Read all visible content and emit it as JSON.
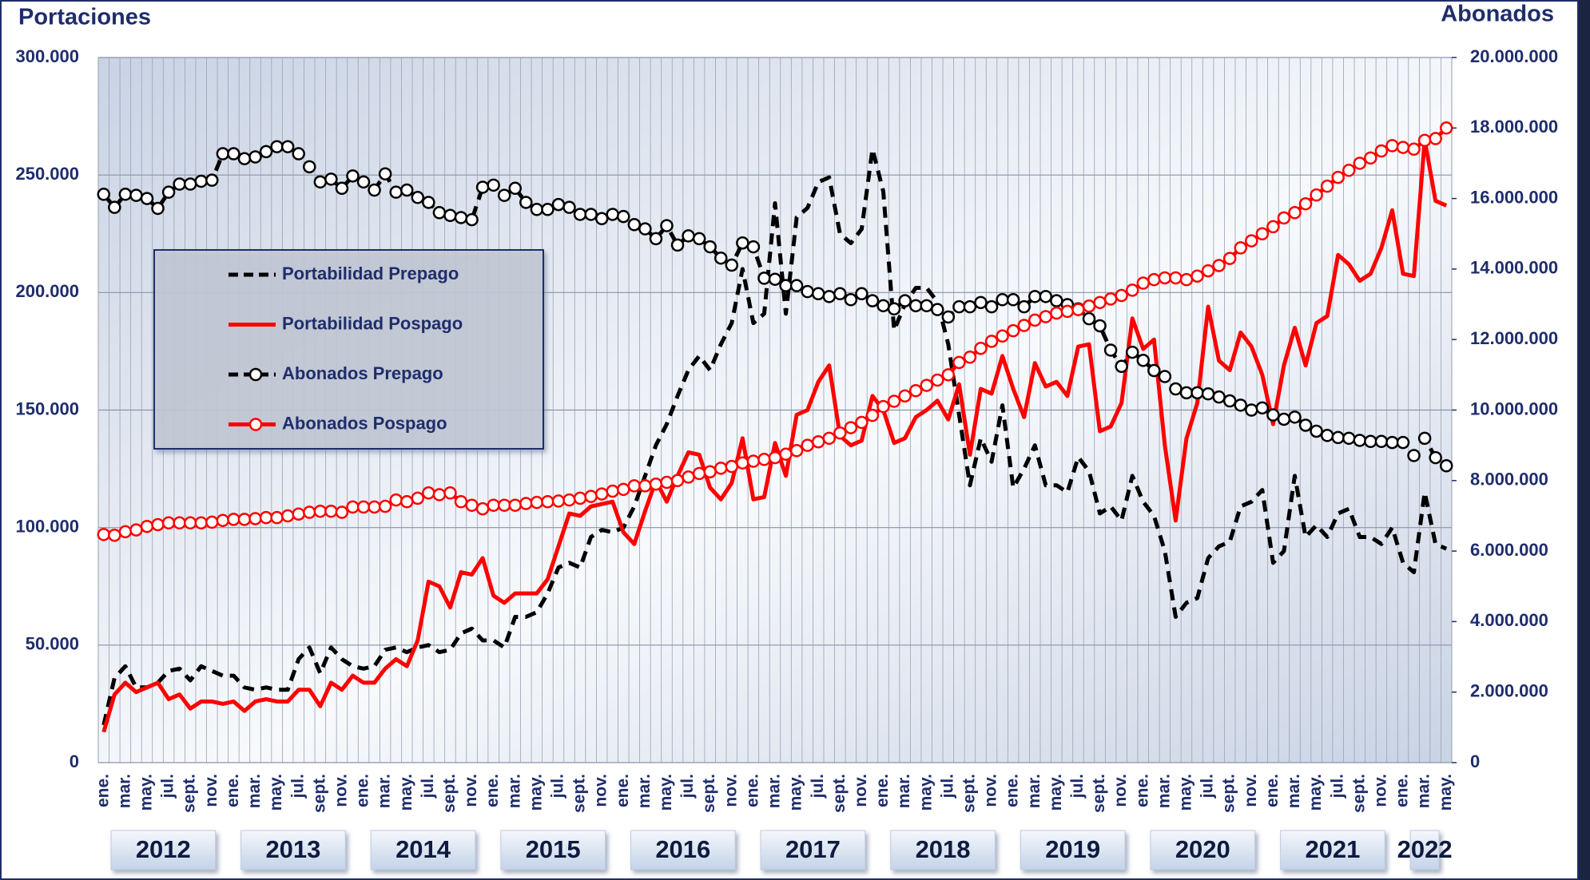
{
  "chart_data": {
    "type": "line",
    "y_label": "Portaciones",
    "y2_label": "Abonados",
    "categories": [
      "ene.",
      null,
      "mar.",
      null,
      "may.",
      null,
      "jul.",
      null,
      "sept.",
      null,
      "nov.",
      null,
      "ene.",
      null,
      "mar.",
      null,
      "may.",
      null,
      "jul.",
      null,
      "sept.",
      null,
      "nov.",
      null,
      "ene.",
      null,
      "mar.",
      null,
      "may.",
      null,
      "jul.",
      null,
      "sept.",
      null,
      "nov.",
      null,
      "ene.",
      null,
      "mar.",
      null,
      "may.",
      null,
      "jul.",
      null,
      "sept.",
      null,
      "nov.",
      null,
      "ene.",
      null,
      "mar.",
      null,
      "may.",
      null,
      "jul.",
      null,
      "sept.",
      null,
      "nov.",
      null,
      "ene.",
      null,
      "mar.",
      null,
      "may.",
      null,
      "jul.",
      null,
      "sept.",
      null,
      "nov.",
      null,
      "ene.",
      null,
      "mar.",
      null,
      "may.",
      null,
      "jul.",
      null,
      "sept.",
      null,
      "nov.",
      null,
      "ene.",
      null,
      "mar.",
      null,
      "may.",
      null,
      "jul.",
      null,
      "sept.",
      null,
      "nov.",
      null,
      "ene.",
      null,
      "mar.",
      null,
      "may.",
      null,
      "jul.",
      null,
      "sept.",
      null,
      "nov.",
      null,
      "ene.",
      null,
      "mar.",
      null,
      "may.",
      null,
      "jul.",
      null,
      "sept.",
      null,
      "nov.",
      null,
      "ene.",
      null,
      "mar.",
      null,
      "may."
    ],
    "years": [
      "2012",
      "2013",
      "2014",
      "2015",
      "2016",
      "2017",
      "2018",
      "2019",
      "2020",
      "2021",
      "2022"
    ],
    "series": [
      {
        "name": "Portabilidad Prepago",
        "color": "#000000",
        "line_style": "dashed",
        "marker": "none",
        "values": [
          16000,
          36000,
          41000,
          32000,
          32000,
          34000,
          39000,
          40000,
          35000,
          41000,
          39000,
          37000,
          37000,
          32000,
          31000,
          32000,
          31000,
          31000,
          44000,
          49000,
          38000,
          49000,
          44000,
          41000,
          40000,
          41000,
          48000,
          49000,
          47000,
          49000,
          50000,
          47000,
          48000,
          55000,
          57000,
          52000,
          52000,
          49000,
          62000,
          62000,
          64000,
          72000,
          83000,
          85000,
          83000,
          96000,
          99000,
          98000,
          100000,
          109000,
          122000,
          135000,
          144000,
          156000,
          167000,
          173000,
          167000,
          178000,
          187000,
          210000,
          187000,
          191000,
          238000,
          191000,
          232000,
          236000,
          247000,
          249000,
          225000,
          221000,
          227000,
          261000,
          243000,
          184000,
          195000,
          202000,
          202000,
          196000,
          178000,
          148000,
          118000,
          138000,
          128000,
          152000,
          117000,
          125000,
          135000,
          118000,
          118000,
          115000,
          130000,
          124000,
          106000,
          109000,
          103000,
          122000,
          111000,
          105000,
          90000,
          62000,
          68000,
          70000,
          87000,
          92000,
          94000,
          109000,
          111000,
          116000,
          85000,
          90000,
          122000,
          96000,
          101000,
          96000,
          106000,
          108000,
          96000,
          96000,
          93000,
          100000,
          85000,
          81000,
          115000,
          93000,
          91000
        ]
      },
      {
        "name": "Portabilidad Pospago",
        "color": "#ff0000",
        "line_style": "solid",
        "marker": "none",
        "values": [
          13000,
          29000,
          34000,
          30000,
          32000,
          34000,
          27000,
          29000,
          23000,
          26000,
          26000,
          25000,
          26000,
          22000,
          26000,
          27000,
          26000,
          26000,
          31000,
          31000,
          24000,
          34000,
          31000,
          37000,
          34000,
          34000,
          40000,
          44000,
          41000,
          52000,
          77000,
          75000,
          66000,
          81000,
          80000,
          87000,
          71000,
          68000,
          72000,
          72000,
          72000,
          78000,
          92000,
          106000,
          105000,
          109000,
          110000,
          111000,
          98000,
          93000,
          107000,
          120000,
          111000,
          122000,
          132000,
          131000,
          117000,
          112000,
          119000,
          138000,
          112000,
          113000,
          136000,
          122000,
          148000,
          150000,
          162000,
          169000,
          139000,
          135000,
          137000,
          156000,
          150000,
          136000,
          138000,
          147000,
          150000,
          154000,
          146000,
          161000,
          131000,
          159000,
          157000,
          173000,
          159000,
          147000,
          170000,
          160000,
          162000,
          156000,
          177000,
          178000,
          141000,
          143000,
          153000,
          189000,
          176000,
          180000,
          135000,
          103000,
          138000,
          153000,
          194000,
          171000,
          167000,
          183000,
          177000,
          165000,
          144000,
          169000,
          185000,
          169000,
          187000,
          190000,
          216000,
          212000,
          205000,
          208000,
          219000,
          235000,
          208000,
          207000,
          265000,
          239000,
          237000
        ]
      },
      {
        "name": "Abonados Prepago",
        "color": "#000000",
        "line_style": "dashed",
        "marker": "circle",
        "axis": "y2",
        "values": [
          16120000,
          15750000,
          16120000,
          16090000,
          16000000,
          15720000,
          16180000,
          16410000,
          16410000,
          16490000,
          16520000,
          17270000,
          17270000,
          17130000,
          17180000,
          17330000,
          17470000,
          17470000,
          17270000,
          16900000,
          16470000,
          16550000,
          16290000,
          16640000,
          16470000,
          16240000,
          16700000,
          16180000,
          16240000,
          16030000,
          15890000,
          15600000,
          15520000,
          15460000,
          15400000,
          16320000,
          16380000,
          16090000,
          16290000,
          15890000,
          15690000,
          15690000,
          15830000,
          15750000,
          15550000,
          15550000,
          15430000,
          15550000,
          15490000,
          15260000,
          15140000,
          14860000,
          15230000,
          14680000,
          14940000,
          14860000,
          14630000,
          14310000,
          14110000,
          14740000,
          14630000,
          13740000,
          13710000,
          13530000,
          13530000,
          13360000,
          13300000,
          13220000,
          13300000,
          13130000,
          13300000,
          13100000,
          12960000,
          12870000,
          13100000,
          12960000,
          12960000,
          12850000,
          12640000,
          12930000,
          12930000,
          13050000,
          12930000,
          13130000,
          13130000,
          12930000,
          13220000,
          13220000,
          13100000,
          12990000,
          12870000,
          12590000,
          12390000,
          11700000,
          11240000,
          11640000,
          11410000,
          11120000,
          10950000,
          10600000,
          10490000,
          10490000,
          10460000,
          10370000,
          10260000,
          10140000,
          10000000,
          10060000,
          9860000,
          9740000,
          9800000,
          9570000,
          9400000,
          9280000,
          9220000,
          9200000,
          9140000,
          9110000,
          9110000,
          9080000,
          9080000,
          8710000,
          9200000,
          8650000,
          8420000
        ]
      },
      {
        "name": "Abonados Pospago",
        "color": "#ff0000",
        "line_style": "solid",
        "marker": "circle",
        "axis": "y2",
        "values": [
          6470000,
          6450000,
          6550000,
          6600000,
          6700000,
          6750000,
          6800000,
          6800000,
          6800000,
          6800000,
          6820000,
          6870000,
          6900000,
          6900000,
          6920000,
          6950000,
          6950000,
          7000000,
          7050000,
          7100000,
          7130000,
          7130000,
          7100000,
          7250000,
          7250000,
          7250000,
          7270000,
          7450000,
          7400000,
          7500000,
          7650000,
          7600000,
          7650000,
          7400000,
          7300000,
          7200000,
          7300000,
          7300000,
          7300000,
          7350000,
          7380000,
          7400000,
          7420000,
          7450000,
          7500000,
          7550000,
          7620000,
          7700000,
          7750000,
          7850000,
          7850000,
          7900000,
          7950000,
          8000000,
          8100000,
          8200000,
          8250000,
          8350000,
          8400000,
          8500000,
          8550000,
          8600000,
          8650000,
          8750000,
          8850000,
          9000000,
          9100000,
          9200000,
          9350000,
          9500000,
          9650000,
          9850000,
          10100000,
          10250000,
          10400000,
          10550000,
          10700000,
          10850000,
          11000000,
          11350000,
          11500000,
          11750000,
          11950000,
          12100000,
          12250000,
          12400000,
          12550000,
          12650000,
          12750000,
          12800000,
          12850000,
          12950000,
          13050000,
          13150000,
          13250000,
          13400000,
          13600000,
          13700000,
          13750000,
          13750000,
          13700000,
          13800000,
          13950000,
          14100000,
          14300000,
          14600000,
          14800000,
          15000000,
          15200000,
          15450000,
          15600000,
          15850000,
          16100000,
          16350000,
          16600000,
          16800000,
          17000000,
          17150000,
          17350000,
          17500000,
          17450000,
          17400000,
          17650000,
          17700000,
          18000000
        ]
      }
    ],
    "ylim": [
      0,
      300000
    ],
    "yticks": [
      0,
      {
        "value": 50000,
        "label": "50.000"
      },
      {
        "value": 100000,
        "label": "100.000"
      },
      {
        "value": 150000,
        "label": "150.000"
      },
      {
        "value": 200000,
        "label": "200.000"
      },
      {
        "value": 250000,
        "label": "250.000"
      },
      {
        "value": 300000,
        "label": "300.000"
      }
    ],
    "y2lim": [
      0,
      20000000
    ],
    "y2ticks": [
      0,
      {
        "value": 2000000,
        "label": "2.000.000"
      },
      {
        "value": 4000000,
        "label": "4.000.000"
      },
      {
        "value": 6000000,
        "label": "6.000.000"
      },
      {
        "value": 8000000,
        "label": "8.000.000"
      },
      {
        "value": 10000000,
        "label": "10.000.000"
      },
      {
        "value": 12000000,
        "label": "12.000.000"
      },
      {
        "value": 14000000,
        "label": "14.000.000"
      },
      {
        "value": 16000000,
        "label": "16.000.000"
      },
      {
        "value": 18000000,
        "label": "18.000.000"
      },
      {
        "value": 20000000,
        "label": "20.000.000"
      }
    ],
    "grid": true,
    "legend": "upper left"
  }
}
